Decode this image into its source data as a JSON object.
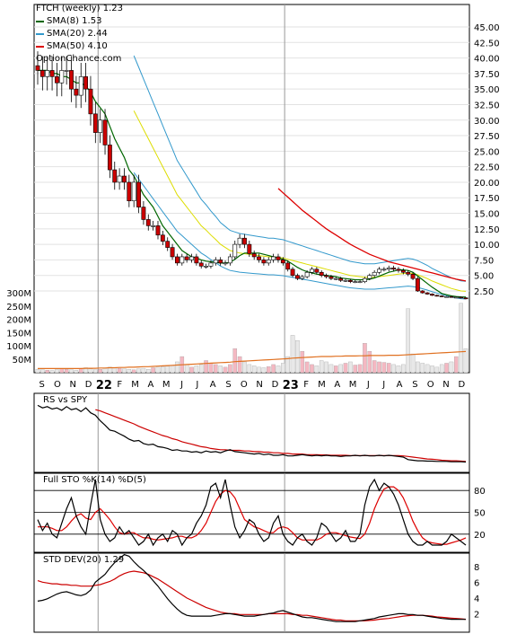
{
  "header": {
    "title": "FTCH (weekly) 1.23",
    "sma8": "SMA(8) 1.53",
    "sma20": "SMA(20) 2.44",
    "sma50": "SMA(50) 4.10",
    "watermark": "OptionChance.com"
  },
  "panels": {
    "rs_label": "RS vs SPY",
    "sto_label": "Full STO %K(14) %D(5)",
    "std_label": "STD DEV(20) 1.29"
  },
  "colors": {
    "up": "#ffffff",
    "down": "#cc0000",
    "sma8": "#006600",
    "sma20": "#3399cc",
    "sma50": "#dd0000",
    "bollinger": "#dddd00",
    "volume_up": "#f4b8c2",
    "volume_other": "#e8e8e8",
    "volume_ma": "#e07020",
    "rs_line": "#000000",
    "rs_ma": "#cc0000",
    "sto_k": "#000000",
    "sto_d": "#dd0000",
    "std_line": "#000000",
    "std_ma": "#cc0000",
    "grid": "#000000"
  },
  "chart_data": [
    {
      "type": "candlestick",
      "title": "FTCH (weekly) 1.23",
      "x_labels": [
        "S",
        "O",
        "N",
        "D",
        "22",
        "F",
        "M",
        "A",
        "M",
        "J",
        "J",
        "A",
        "S",
        "O",
        "N",
        "D",
        "23",
        "F",
        "M",
        "A",
        "M",
        "J",
        "J",
        "A",
        "S",
        "O",
        "N",
        "D"
      ],
      "price_ticks": [
        "45.00",
        "42.50",
        "40.00",
        "37.50",
        "35.00",
        "32.50",
        "30.00",
        "27.50",
        "25.00",
        "22.50",
        "20.00",
        "17.50",
        "15.00",
        "12.50",
        "10.00",
        "7.50",
        "5.00",
        "2.50"
      ],
      "price_tick_values": [
        45,
        42.5,
        40,
        37.5,
        35,
        32.5,
        30,
        27.5,
        25,
        22.5,
        20,
        17.5,
        15,
        12.5,
        10,
        7.5,
        5,
        2.5
      ],
      "volume_ticks": [
        "300M",
        "250M",
        "200M",
        "150M",
        "100M",
        "50M"
      ],
      "volume_tick_values": [
        300,
        250,
        200,
        150,
        100,
        50
      ],
      "close": [
        38,
        37,
        38,
        37,
        36,
        38,
        38,
        35,
        34,
        37,
        35,
        31,
        28,
        30,
        26,
        22,
        20,
        21,
        20,
        17,
        20,
        16,
        14,
        13,
        13,
        11.5,
        10.5,
        9.5,
        8,
        7,
        8,
        7.5,
        8,
        7,
        6.5,
        6.5,
        7,
        7.5,
        7,
        7,
        8,
        10,
        11,
        10,
        8.5,
        8,
        7.5,
        7,
        7.5,
        8,
        7.5,
        7,
        6,
        5,
        4.5,
        4.8,
        5.5,
        6,
        5.5,
        5,
        4.8,
        4.5,
        4.5,
        4.2,
        4.2,
        4,
        4,
        4,
        4.5,
        5,
        5.5,
        6,
        6,
        6.2,
        6,
        5.8,
        5.5,
        5.2,
        4.5,
        2.5,
        2.2,
        2,
        1.8,
        1.7,
        1.6,
        1.6,
        1.5,
        1.5,
        1.4,
        1.23
      ],
      "sma8": [
        38,
        38,
        38,
        37.5,
        37.5,
        37,
        37,
        36.5,
        36,
        36,
        35.5,
        34.5,
        33,
        32,
        31,
        29,
        27,
        25.5,
        24,
        22,
        21,
        19.5,
        18,
        17,
        16,
        14.5,
        13,
        12,
        11,
        10,
        9,
        8.5,
        8,
        7.8,
        7.5,
        7.3,
        7.2,
        7.1,
        7,
        7,
        7.1,
        7.6,
        8.2,
        8.6,
        8.6,
        8.6,
        8.6,
        8.4,
        8.2,
        8,
        7.8,
        7.6,
        7.3,
        6.8,
        6.3,
        5.9,
        5.6,
        5.4,
        5.2,
        5.1,
        5,
        4.9,
        4.8,
        4.6,
        4.5,
        4.4,
        4.3,
        4.3,
        4.3,
        4.4,
        4.6,
        4.9,
        5.2,
        5.5,
        5.7,
        5.9,
        5.9,
        5.8,
        5.5,
        4.9,
        4.3,
        3.7,
        3.1,
        2.6,
        2.1,
        1.9,
        1.7,
        1.6,
        1.55,
        1.53
      ],
      "sma20": [
        null,
        null,
        null,
        null,
        null,
        null,
        null,
        null,
        null,
        null,
        null,
        null,
        null,
        null,
        null,
        null,
        null,
        null,
        null,
        null,
        31.5,
        30,
        28.5,
        27,
        25.5,
        24,
        22.5,
        21,
        19.5,
        18,
        17,
        16,
        15,
        14,
        13,
        12.3,
        11.5,
        10.8,
        10,
        9.5,
        9,
        8.8,
        8.6,
        8.5,
        8.4,
        8.3,
        8.2,
        8.1,
        8,
        8,
        7.9,
        7.8,
        7.6,
        7.4,
        7.2,
        7,
        6.8,
        6.6,
        6.4,
        6.2,
        6,
        5.8,
        5.6,
        5.4,
        5.2,
        5,
        4.9,
        4.8,
        4.7,
        4.7,
        4.7,
        4.8,
        4.9,
        5,
        5.1,
        5.2,
        5.3,
        5.4,
        5.3,
        5.1,
        4.8,
        4.5,
        4.1,
        3.8,
        3.5,
        3.2,
        2.9,
        2.7,
        2.5,
        2.44
      ],
      "sma50": [
        null,
        null,
        null,
        null,
        null,
        null,
        null,
        null,
        null,
        null,
        null,
        null,
        null,
        null,
        null,
        null,
        null,
        null,
        null,
        null,
        null,
        null,
        null,
        null,
        null,
        null,
        null,
        null,
        null,
        null,
        null,
        null,
        null,
        null,
        null,
        null,
        null,
        null,
        null,
        null,
        null,
        null,
        null,
        null,
        null,
        null,
        null,
        null,
        null,
        null,
        19,
        18.3,
        17.6,
        16.9,
        16.2,
        15.5,
        14.9,
        14.3,
        13.7,
        13.1,
        12.5,
        12,
        11.5,
        11,
        10.5,
        10,
        9.6,
        9.2,
        8.8,
        8.4,
        8.1,
        7.8,
        7.5,
        7.2,
        7,
        6.8,
        6.6,
        6.4,
        6.2,
        6,
        5.8,
        5.6,
        5.4,
        5.2,
        5,
        4.8,
        4.6,
        4.4,
        4.25,
        4.1
      ],
      "volume": [
        12,
        10,
        9,
        8,
        11,
        14,
        12,
        10,
        9,
        15,
        18,
        14,
        10,
        12,
        15,
        20,
        18,
        16,
        14,
        12,
        10,
        14,
        16,
        12,
        18,
        20,
        22,
        24,
        25,
        40,
        60,
        30,
        20,
        25,
        30,
        45,
        35,
        30,
        25,
        20,
        30,
        90,
        60,
        40,
        30,
        25,
        20,
        18,
        22,
        30,
        25,
        35,
        60,
        140,
        120,
        80,
        40,
        30,
        25,
        45,
        40,
        30,
        25,
        30,
        35,
        40,
        28,
        30,
        110,
        80,
        45,
        40,
        38,
        35,
        30,
        25,
        30,
        240,
        70,
        40,
        35,
        30,
        25,
        20,
        30,
        35,
        40,
        60,
        260,
        90
      ],
      "volume_ma": [
        15,
        15,
        15,
        15,
        15,
        15,
        15,
        15,
        15,
        15,
        16,
        16,
        16,
        17,
        17,
        18,
        18,
        19,
        19,
        20,
        20,
        21,
        22,
        22,
        23,
        24,
        25,
        26,
        27,
        28,
        29,
        30,
        31,
        32,
        33,
        34,
        35,
        36,
        37,
        38,
        39,
        41,
        42,
        43,
        44,
        45,
        46,
        47,
        48,
        49,
        50,
        51,
        52,
        54,
        55,
        56,
        57,
        58,
        59,
        60,
        60,
        60,
        61,
        61,
        62,
        62,
        62,
        63,
        63,
        64,
        64,
        64,
        64,
        65,
        65,
        65,
        66,
        67,
        68,
        69,
        70,
        71,
        72,
        73,
        74,
        75,
        76,
        77,
        78,
        79
      ]
    },
    {
      "type": "line",
      "title": "RS vs SPY",
      "series": [
        {
          "name": "RS vs SPY",
          "values": [
            10,
            9.6,
            9.8,
            9.4,
            9.6,
            9.2,
            9.8,
            9.3,
            9.5,
            9.0,
            9.6,
            8.8,
            8.4,
            7.5,
            6.8,
            6.0,
            5.8,
            5.4,
            5.0,
            4.5,
            4.2,
            4.3,
            3.8,
            3.6,
            3.7,
            3.3,
            3.2,
            3.0,
            2.7,
            2.8,
            2.6,
            2.6,
            2.4,
            2.5,
            2.3,
            2.6,
            2.4,
            2.5,
            2.3,
            2.6,
            2.8,
            2.5,
            2.4,
            2.3,
            2.2,
            2.1,
            2.2,
            2.0,
            2.1,
            1.9,
            1.9,
            2.0,
            1.8,
            1.8,
            1.9,
            2.0,
            1.9,
            1.8,
            1.9,
            1.8,
            1.9,
            1.8,
            1.8,
            1.7,
            1.8,
            1.8,
            1.9,
            1.8,
            1.9,
            1.8,
            1.8,
            1.9,
            1.8,
            1.9,
            1.8,
            1.7,
            1.6,
            1.2,
            1.1,
            1.0,
            1.0,
            0.95,
            0.95,
            0.9,
            0.9,
            0.9,
            0.85,
            0.85,
            0.85,
            0.8
          ]
        },
        {
          "name": "MA",
          "values": [
            null,
            null,
            null,
            null,
            null,
            null,
            null,
            null,
            null,
            null,
            null,
            null,
            9.3,
            9.1,
            8.8,
            8.5,
            8.2,
            7.9,
            7.6,
            7.3,
            7.0,
            6.6,
            6.3,
            6.0,
            5.7,
            5.4,
            5.1,
            4.9,
            4.6,
            4.4,
            4.1,
            3.9,
            3.7,
            3.5,
            3.3,
            3.2,
            3.0,
            2.9,
            2.8,
            2.8,
            2.7,
            2.7,
            2.7,
            2.6,
            2.6,
            2.5,
            2.5,
            2.4,
            2.4,
            2.3,
            2.3,
            2.2,
            2.2,
            2.1,
            2.1,
            2.1,
            2.0,
            2.0,
            2.0,
            1.95,
            1.95,
            1.9,
            1.9,
            1.9,
            1.9,
            1.85,
            1.85,
            1.85,
            1.85,
            1.85,
            1.85,
            1.85,
            1.85,
            1.85,
            1.85,
            1.85,
            1.8,
            1.7,
            1.6,
            1.5,
            1.4,
            1.3,
            1.25,
            1.2,
            1.1,
            1.05,
            1.0,
            1.0,
            0.95,
            0.9
          ]
        }
      ]
    },
    {
      "type": "line",
      "title": "Full STO %K(14) %D(5)",
      "y_ticks": [
        "80",
        "50",
        "20"
      ],
      "y_tick_values": [
        80,
        50,
        20
      ],
      "ylim": [
        0,
        100
      ],
      "series": [
        {
          "name": "%K",
          "values": [
            40,
            25,
            35,
            20,
            15,
            35,
            55,
            70,
            45,
            30,
            20,
            60,
            95,
            40,
            20,
            10,
            15,
            30,
            20,
            25,
            15,
            5,
            10,
            20,
            5,
            15,
            20,
            10,
            25,
            20,
            5,
            15,
            20,
            35,
            45,
            60,
            85,
            90,
            70,
            95,
            60,
            30,
            15,
            25,
            40,
            35,
            20,
            10,
            15,
            35,
            45,
            20,
            10,
            5,
            15,
            20,
            10,
            5,
            15,
            35,
            30,
            20,
            10,
            15,
            25,
            10,
            10,
            20,
            60,
            85,
            95,
            80,
            90,
            85,
            75,
            60,
            40,
            20,
            10,
            5,
            5,
            10,
            5,
            5,
            5,
            10,
            20,
            15,
            10,
            5
          ],
          "note": ""
        },
        {
          "name": "%D",
          "values": [
            30,
            30,
            30,
            28,
            25,
            25,
            30,
            38,
            45,
            48,
            42,
            40,
            50,
            55,
            48,
            40,
            30,
            22,
            20,
            22,
            22,
            18,
            15,
            15,
            13,
            12,
            13,
            14,
            15,
            17,
            17,
            15,
            15,
            18,
            25,
            35,
            50,
            65,
            75,
            80,
            78,
            70,
            55,
            40,
            35,
            30,
            28,
            25,
            22,
            22,
            28,
            30,
            28,
            22,
            15,
            12,
            12,
            12,
            12,
            15,
            20,
            22,
            22,
            20,
            18,
            16,
            15,
            14,
            20,
            35,
            55,
            70,
            82,
            85,
            85,
            80,
            70,
            55,
            38,
            25,
            15,
            10,
            8,
            7,
            6,
            6,
            8,
            10,
            12,
            15
          ]
        }
      ]
    },
    {
      "type": "line",
      "title": "STD DEV(20) 1.29",
      "y_ticks": [
        "8",
        "6",
        "4",
        "2"
      ],
      "y_tick_values": [
        8,
        6,
        4,
        2
      ],
      "ylim": [
        0,
        9
      ],
      "series": [
        {
          "name": "STD DEV(20)",
          "values": [
            3.6,
            3.7,
            3.9,
            4.2,
            4.5,
            4.7,
            4.8,
            4.6,
            4.4,
            4.3,
            4.5,
            5,
            6,
            6.5,
            7,
            7.8,
            8.5,
            9,
            9.5,
            9.3,
            8.6,
            8,
            7.5,
            6.9,
            6.2,
            5.5,
            4.7,
            3.9,
            3.2,
            2.6,
            2.1,
            1.8,
            1.7,
            1.7,
            1.7,
            1.7,
            1.7,
            1.8,
            1.9,
            2,
            2,
            1.9,
            1.8,
            1.7,
            1.7,
            1.7,
            1.8,
            1.9,
            2,
            2.1,
            2.3,
            2.4,
            2.2,
            2.0,
            1.8,
            1.6,
            1.5,
            1.5,
            1.4,
            1.3,
            1.2,
            1.1,
            1.0,
            1.0,
            1.0,
            1.0,
            1.0,
            1.1,
            1.2,
            1.3,
            1.4,
            1.6,
            1.7,
            1.8,
            1.9,
            2,
            2,
            1.9,
            1.9,
            1.8,
            1.8,
            1.7,
            1.6,
            1.5,
            1.4,
            1.35,
            1.3,
            1.3,
            1.29,
            1.29
          ]
        },
        {
          "name": "MA",
          "values": [
            6.2,
            6,
            5.9,
            5.8,
            5.8,
            5.7,
            5.7,
            5.6,
            5.6,
            5.5,
            5.5,
            5.5,
            5.6,
            5.7,
            5.9,
            6.1,
            6.4,
            6.8,
            7.1,
            7.3,
            7.4,
            7.3,
            7.2,
            7.0,
            6.7,
            6.4,
            6.0,
            5.6,
            5.2,
            4.8,
            4.4,
            4.0,
            3.7,
            3.4,
            3.1,
            2.8,
            2.6,
            2.4,
            2.2,
            2.1,
            2.0,
            2.0,
            1.9,
            1.9,
            1.9,
            1.9,
            1.9,
            1.9,
            2.0,
            2.0,
            2.0,
            2.0,
            2.0,
            1.9,
            1.9,
            1.8,
            1.8,
            1.7,
            1.6,
            1.5,
            1.4,
            1.3,
            1.2,
            1.2,
            1.1,
            1.1,
            1.1,
            1.1,
            1.1,
            1.15,
            1.2,
            1.3,
            1.35,
            1.4,
            1.5,
            1.6,
            1.7,
            1.75,
            1.8,
            1.8,
            1.8,
            1.75,
            1.7,
            1.6,
            1.55,
            1.5,
            1.45,
            1.4,
            1.35,
            1.3
          ]
        }
      ]
    }
  ]
}
